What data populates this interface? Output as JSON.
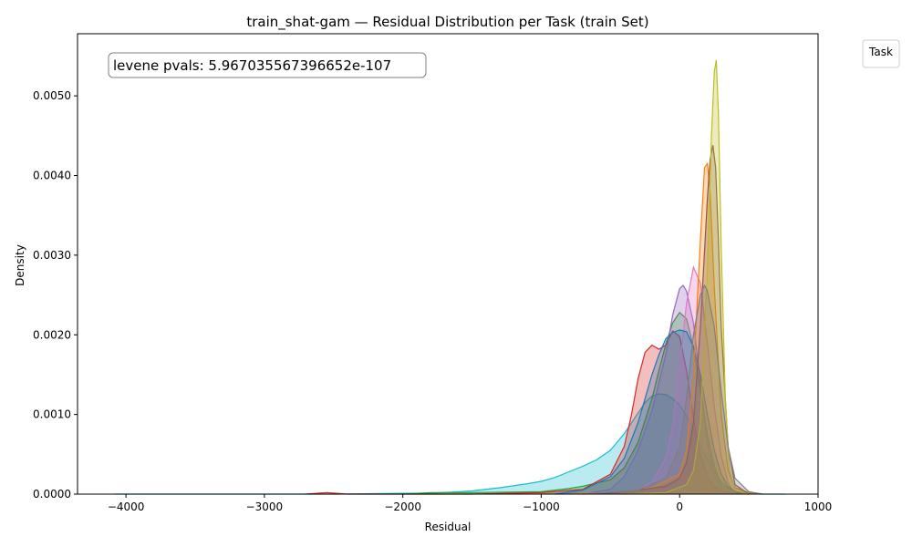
{
  "chart_data": {
    "type": "area",
    "title": "train_shat-gam — Residual Distribution per Task (train Set)",
    "xlabel": "Residual",
    "ylabel": "Density",
    "xlim": [
      -4350,
      1000
    ],
    "ylim": [
      0,
      0.00578
    ],
    "xticks": [
      -4000,
      -3000,
      -2000,
      -1000,
      0,
      1000
    ],
    "xtick_labels": [
      "−4000",
      "−3000",
      "−2000",
      "−1000",
      "0",
      "1000"
    ],
    "yticks": [
      0,
      0.001,
      0.002,
      0.003,
      0.004,
      0.005
    ],
    "ytick_labels": [
      "0.0000",
      "0.0010",
      "0.0020",
      "0.0030",
      "0.0040",
      "0.0050"
    ],
    "grid": false,
    "legend": {
      "title": "Task",
      "placement": "outside-top-right",
      "entries": []
    },
    "annotation": "levene pvals: 5.967035567396652e-107",
    "series": [
      {
        "color": "#17becf",
        "x": [
          -4080,
          -3500,
          -3000,
          -2500,
          -2000,
          -1800,
          -1500,
          -1300,
          -1100,
          -1000,
          -900,
          -800,
          -700,
          -600,
          -500,
          -400,
          -300,
          -250,
          -200,
          -150,
          -100,
          -50,
          0,
          50,
          100,
          150,
          200,
          250,
          300,
          350,
          400,
          500,
          600,
          760
        ],
        "y": [
          0,
          0,
          0,
          0,
          1e-05,
          1e-05,
          4e-05,
          8e-05,
          0.00013,
          0.00016,
          0.00021,
          0.00028,
          0.00035,
          0.00043,
          0.00055,
          0.00076,
          0.00102,
          0.00115,
          0.00123,
          0.00126,
          0.00125,
          0.0012,
          0.00112,
          0.00098,
          0.00082,
          0.00062,
          0.00044,
          0.00028,
          0.00016,
          8e-05,
          4e-05,
          1e-05,
          0,
          0
        ]
      },
      {
        "color": "#2ca02c",
        "x": [
          -2000,
          -1800,
          -1500,
          -1000,
          -800,
          -700,
          -600,
          -500,
          -400,
          -300,
          -200,
          -150,
          -100,
          -50,
          0,
          50,
          100,
          150,
          200,
          250,
          300,
          400,
          500
        ],
        "y": [
          0,
          2e-05,
          2e-05,
          3e-05,
          7e-05,
          0.0001,
          0.00014,
          0.00018,
          0.00033,
          0.00065,
          0.0012,
          0.00155,
          0.00188,
          0.00215,
          0.00228,
          0.0022,
          0.00185,
          0.0013,
          0.00075,
          0.00035,
          0.00012,
          2e-05,
          0
        ]
      },
      {
        "color": "#d62728",
        "x": [
          -2700,
          -2550,
          -2400,
          -1500,
          -1000,
          -700,
          -500,
          -400,
          -350,
          -300,
          -250,
          -200,
          -150,
          -100,
          -50,
          0,
          50,
          100,
          150,
          200,
          250,
          300,
          400,
          500
        ],
        "y": [
          0,
          2e-05,
          0,
          0,
          2e-05,
          6e-05,
          0.00025,
          0.0006,
          0.00098,
          0.00145,
          0.00178,
          0.00187,
          0.00182,
          0.00187,
          0.00205,
          0.00198,
          0.00155,
          0.00095,
          0.0005,
          0.00022,
          0.0001,
          4e-05,
          1e-05,
          0
        ]
      },
      {
        "color": "#9467bd",
        "x": [
          -700,
          -500,
          -400,
          -300,
          -200,
          -150,
          -100,
          -50,
          0,
          25,
          50,
          100,
          150,
          200,
          250,
          300,
          400
        ],
        "y": [
          0,
          6e-05,
          0.00022,
          0.00055,
          0.00105,
          0.0014,
          0.00175,
          0.00225,
          0.00258,
          0.00262,
          0.00255,
          0.00215,
          0.0014,
          0.00065,
          0.00025,
          8e-05,
          0
        ]
      },
      {
        "color": "#e377c2",
        "x": [
          -500,
          -300,
          -200,
          -100,
          -50,
          0,
          50,
          100,
          150,
          200,
          250,
          300,
          350,
          400
        ],
        "y": [
          0,
          5e-05,
          0.00015,
          0.00045,
          0.00085,
          0.0016,
          0.0024,
          0.00285,
          0.00265,
          0.0019,
          0.0011,
          0.00048,
          0.00015,
          0
        ]
      },
      {
        "color": "#1f77b4",
        "x": [
          -900,
          -700,
          -500,
          -400,
          -300,
          -250,
          -200,
          -150,
          -100,
          -50,
          0,
          50,
          100,
          150,
          200,
          250,
          300,
          350,
          400,
          500
        ],
        "y": [
          0,
          5e-05,
          0.00022,
          0.00045,
          0.0009,
          0.0012,
          0.0015,
          0.00175,
          0.00195,
          0.00203,
          0.00206,
          0.00204,
          0.00185,
          0.0015,
          0.001,
          0.00055,
          0.00025,
          0.0001,
          3e-05,
          0
        ]
      },
      {
        "color": "#ff7f0e",
        "x": [
          -800,
          -400,
          -200,
          0,
          50,
          100,
          150,
          180,
          200,
          220,
          250,
          300,
          350,
          400,
          500,
          600
        ],
        "y": [
          0,
          3e-05,
          8e-05,
          0.00025,
          0.00055,
          0.0015,
          0.0032,
          0.0041,
          0.00415,
          0.0038,
          0.0026,
          0.001,
          0.0003,
          8e-05,
          2e-05,
          0
        ]
      },
      {
        "color": "#8c564b",
        "x": [
          -600,
          -300,
          -100,
          0,
          50,
          100,
          150,
          200,
          220,
          240,
          260,
          280,
          300,
          350,
          400,
          500
        ],
        "y": [
          0,
          5e-05,
          0.0001,
          0.0002,
          0.0004,
          0.0009,
          0.0021,
          0.0037,
          0.0042,
          0.00438,
          0.0041,
          0.0032,
          0.0021,
          0.0006,
          0.00012,
          0
        ]
      },
      {
        "color": "#bcbd22",
        "x": [
          -400,
          -100,
          50,
          100,
          150,
          200,
          230,
          250,
          265,
          280,
          300,
          330,
          360,
          400,
          500
        ],
        "y": [
          0,
          2e-05,
          0.00012,
          0.0003,
          0.0009,
          0.0028,
          0.0045,
          0.0053,
          0.00545,
          0.0048,
          0.0031,
          0.0012,
          0.0003,
          5e-05,
          0
        ]
      },
      {
        "color": "#7f7f7f",
        "x": [
          -700,
          -300,
          -100,
          0,
          50,
          100,
          150,
          180,
          200,
          250,
          300,
          350,
          400,
          500,
          600
        ],
        "y": [
          0,
          5e-05,
          0.0002,
          0.0006,
          0.0012,
          0.002,
          0.0025,
          0.00262,
          0.00255,
          0.0021,
          0.0013,
          0.0006,
          0.0002,
          3e-05,
          0
        ]
      }
    ]
  }
}
